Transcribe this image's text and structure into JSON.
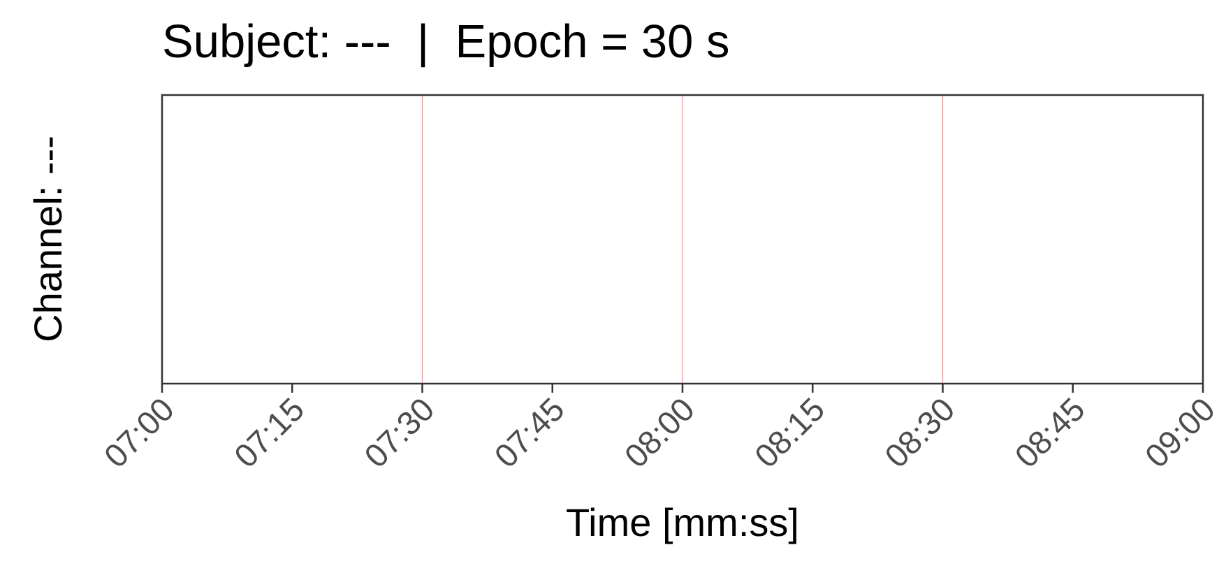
{
  "chart_data": {
    "type": "line",
    "title": "Subject: ---  |  Epoch = 30 s",
    "xlabel": "Time [mm:ss]",
    "ylabel": "Channel: ---",
    "x_ticks": [
      "07:00",
      "07:15",
      "07:30",
      "07:45",
      "08:00",
      "08:15",
      "08:30",
      "08:45",
      "09:00"
    ],
    "xlim": [
      "07:00",
      "09:00"
    ],
    "epoch_boundaries": [
      "07:30",
      "08:00",
      "08:30"
    ],
    "series": [],
    "grid": false,
    "legend": "none",
    "colors": {
      "epoch_line": "#e8959a",
      "frame": "#333333",
      "tick_text": "#4d4d4d",
      "text": "#000000"
    }
  }
}
